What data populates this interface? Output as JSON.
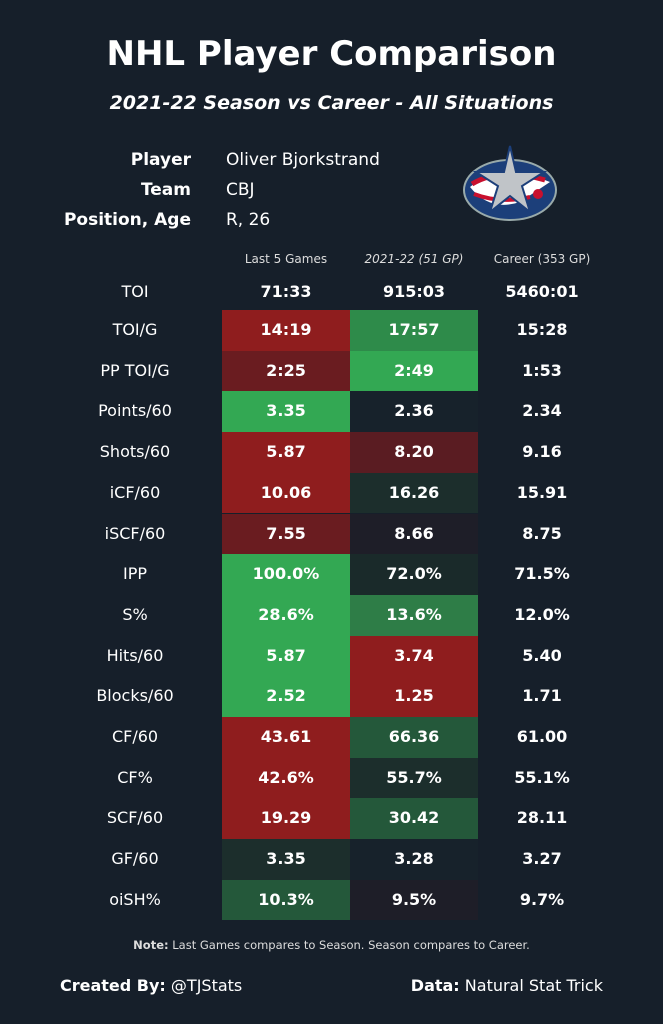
{
  "title": "NHL Player Comparison",
  "subtitle": "2021-22 Season vs Career - All Situations",
  "info": [
    {
      "k": "Player",
      "v": "Oliver Bjorkstrand"
    },
    {
      "k": "Team",
      "v": "CBJ"
    },
    {
      "k": "Position, Age",
      "v": "R, 26"
    }
  ],
  "logo": "Columbus Blue Jackets",
  "colors": {
    "background": "#161f2a",
    "red": "#8f1d1e",
    "dark_red": "#6a1c20",
    "green": "#33a853",
    "mid_green": "#2e8b4a",
    "dark_green": "#24583a",
    "neutral": "#1c2e2c"
  },
  "chart_data": {
    "type": "table",
    "columns": [
      "Last 5 Games",
      "2021-22 (51 GP)",
      "Career (353 GP)"
    ],
    "rows": [
      {
        "label": "TOI",
        "values": [
          "71:33",
          "915:03",
          "5460:01"
        ],
        "colors": [
          "",
          "",
          ""
        ]
      },
      {
        "label": "TOI/G",
        "values": [
          "14:19",
          "17:57",
          "15:28"
        ],
        "colors": [
          "#8f1d1e",
          "#2e8b4a",
          ""
        ]
      },
      {
        "label": "PP TOI/G",
        "values": [
          "2:25",
          "2:49",
          "1:53"
        ],
        "colors": [
          "#6a1c20",
          "#33a853",
          ""
        ]
      },
      {
        "label": "Points/60",
        "values": [
          "3.35",
          "2.36",
          "2.34"
        ],
        "colors": [
          "#33a853",
          "#17222b",
          ""
        ]
      },
      {
        "label": "Shots/60",
        "values": [
          "5.87",
          "8.20",
          "9.16"
        ],
        "colors": [
          "#8f1d1e",
          "#5a1c22",
          ""
        ]
      },
      {
        "label": "iCF/60",
        "values": [
          "10.06",
          "16.26",
          "15.91"
        ],
        "colors": [
          "#8f1d1e",
          "#1c2e2c",
          ""
        ]
      },
      {
        "label": "iSCF/60",
        "values": [
          "7.55",
          "8.66",
          "8.75"
        ],
        "colors": [
          "#6a1c20",
          "#1e1e28",
          ""
        ]
      },
      {
        "label": "IPP",
        "values": [
          "100.0%",
          "72.0%",
          "71.5%"
        ],
        "colors": [
          "#33a853",
          "#1a2a2a",
          ""
        ]
      },
      {
        "label": "S%",
        "values": [
          "28.6%",
          "13.6%",
          "12.0%"
        ],
        "colors": [
          "#33a853",
          "#2e7d47",
          ""
        ]
      },
      {
        "label": "Hits/60",
        "values": [
          "5.87",
          "3.74",
          "5.40"
        ],
        "colors": [
          "#33a853",
          "#8f1d1e",
          ""
        ]
      },
      {
        "label": "Blocks/60",
        "values": [
          "2.52",
          "1.25",
          "1.71"
        ],
        "colors": [
          "#33a853",
          "#8f1d1e",
          ""
        ]
      },
      {
        "label": "CF/60",
        "values": [
          "43.61",
          "66.36",
          "61.00"
        ],
        "colors": [
          "#8f1d1e",
          "#24583a",
          ""
        ]
      },
      {
        "label": "CF%",
        "values": [
          "42.6%",
          "55.7%",
          "55.1%"
        ],
        "colors": [
          "#8f1d1e",
          "#1c2e2c",
          ""
        ]
      },
      {
        "label": "SCF/60",
        "values": [
          "19.29",
          "30.42",
          "28.11"
        ],
        "colors": [
          "#8f1d1e",
          "#24583a",
          ""
        ]
      },
      {
        "label": "GF/60",
        "values": [
          "3.35",
          "3.28",
          "3.27"
        ],
        "colors": [
          "#1c2e2c",
          "#17222b",
          ""
        ]
      },
      {
        "label": "oiSH%",
        "values": [
          "10.3%",
          "9.5%",
          "9.7%"
        ],
        "colors": [
          "#24583a",
          "#1e1e28",
          ""
        ]
      }
    ]
  },
  "note": {
    "bold": "Note:",
    "text": " Last Games compares to Season. Season compares to Career."
  },
  "footer": {
    "created_label": "Created By:",
    "created_value": " @TJStats",
    "data_label": "Data:",
    "data_value": " Natural Stat Trick"
  }
}
